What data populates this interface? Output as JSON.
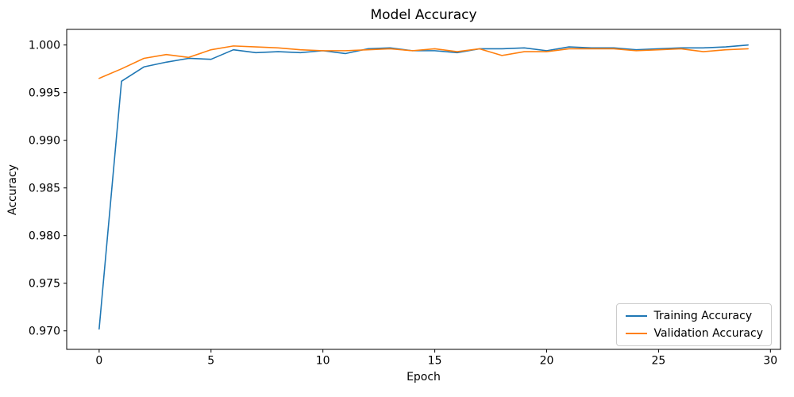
{
  "chart_data": {
    "type": "line",
    "title": "Model Accuracy",
    "xlabel": "Epoch",
    "ylabel": "Accuracy",
    "grid": false,
    "legend_position": "lower right",
    "x": [
      0,
      1,
      2,
      3,
      4,
      5,
      6,
      7,
      8,
      9,
      10,
      11,
      12,
      13,
      14,
      15,
      16,
      17,
      18,
      19,
      20,
      21,
      22,
      23,
      24,
      25,
      26,
      27,
      28,
      29
    ],
    "series": [
      {
        "name": "Training Accuracy",
        "color": "#1f77b4",
        "values": [
          0.9702,
          0.9962,
          0.9977,
          0.9982,
          0.9986,
          0.9985,
          0.9995,
          0.9992,
          0.9993,
          0.9992,
          0.9994,
          0.9991,
          0.9996,
          0.9997,
          0.9994,
          0.9994,
          0.9992,
          0.9996,
          0.9996,
          0.9997,
          0.9994,
          0.9998,
          0.9997,
          0.9997,
          0.9995,
          0.9996,
          0.9997,
          0.9997,
          0.9998,
          1.0
        ]
      },
      {
        "name": "Validation Accuracy",
        "color": "#ff7f0e",
        "values": [
          0.9965,
          0.9975,
          0.9986,
          0.999,
          0.9987,
          0.9995,
          0.9999,
          0.9998,
          0.9997,
          0.9995,
          0.9994,
          0.9994,
          0.9995,
          0.9996,
          0.9994,
          0.9996,
          0.9993,
          0.9996,
          0.9989,
          0.9993,
          0.9993,
          0.9996,
          0.9996,
          0.9996,
          0.9994,
          0.9995,
          0.9996,
          0.9993,
          0.9995,
          0.9996
        ]
      }
    ],
    "xlim": [
      -1.45,
      30.45
    ],
    "ylim": [
      0.96806,
      1.00164
    ],
    "x_ticks": [
      0,
      5,
      10,
      15,
      20,
      25,
      30
    ],
    "y_ticks": [
      0.97,
      0.975,
      0.98,
      0.985,
      0.99,
      0.995,
      1.0
    ],
    "axis_color": "#000000"
  }
}
